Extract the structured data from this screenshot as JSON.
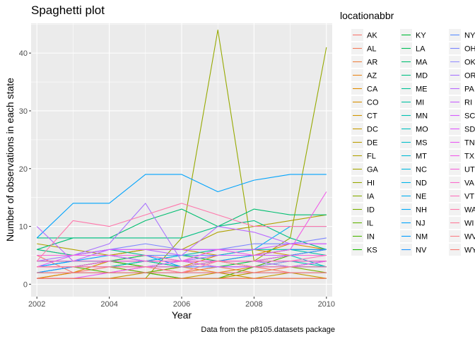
{
  "chart_data": {
    "type": "line",
    "title": "Spaghetti plot",
    "xlabel": "Year",
    "ylabel": "Number of observations in each state",
    "caption": "Data from the p8105.datasets package",
    "legend_title": "locationabbr",
    "legend_placement": "right",
    "grid": true,
    "xlim": [
      2001.84,
      2010.16
    ],
    "ylim": [
      -2.15,
      45.15
    ],
    "x_ticks": [
      2002,
      2004,
      2006,
      2008,
      2010
    ],
    "y_ticks": [
      0,
      10,
      20,
      30,
      40
    ],
    "x": [
      2002,
      2003,
      2004,
      2005,
      2006,
      2007,
      2008,
      2009,
      2010
    ],
    "series": [
      {
        "name": "AK",
        "color": "#F8766D",
        "values": [
          5,
          2,
          3,
          2,
          2,
          3,
          3,
          2,
          2
        ]
      },
      {
        "name": "AL",
        "color": "#F37B59",
        "values": [
          1,
          1,
          1,
          1,
          1,
          1,
          1,
          1,
          1
        ]
      },
      {
        "name": "AR",
        "color": "#ED8141",
        "values": [
          1,
          2,
          2,
          3,
          2,
          3,
          2,
          3,
          3
        ]
      },
      {
        "name": "AZ",
        "color": "#E7861B",
        "values": [
          2,
          2,
          2,
          2,
          3,
          2,
          3,
          3,
          3
        ]
      },
      {
        "name": "CA",
        "color": "#E08B00",
        "values": [
          1,
          2,
          4,
          3,
          3,
          5,
          5,
          7,
          6
        ]
      },
      {
        "name": "CO",
        "color": "#D89000",
        "values": [
          4,
          4,
          4,
          5,
          4,
          4,
          5,
          6,
          6
        ]
      },
      {
        "name": "CT",
        "color": "#CF9400",
        "values": [
          6,
          5,
          5,
          6,
          6,
          5,
          6,
          5,
          5
        ]
      },
      {
        "name": "DC",
        "color": "#C59900",
        "values": [
          1,
          1,
          1,
          2,
          1,
          2,
          1,
          2,
          1
        ]
      },
      {
        "name": "DE",
        "color": "#BB9D00",
        "values": [
          1,
          1,
          1,
          1,
          1,
          1,
          2,
          2,
          2
        ]
      },
      {
        "name": "FL",
        "color": "#B0A100",
        "values": [
          7,
          6,
          5,
          6,
          6,
          9,
          10,
          11,
          12
        ]
      },
      {
        "name": "GA",
        "color": "#A3A500",
        "values": [
          1,
          1,
          1,
          1,
          1,
          1,
          1,
          1,
          1
        ]
      },
      {
        "name": "HI",
        "color": "#96A900",
        "values": [
          1,
          1,
          1,
          1,
          8,
          44,
          4,
          8,
          41
        ]
      },
      {
        "name": "IA",
        "color": "#87AC00",
        "values": [
          2,
          2,
          2,
          2,
          2,
          2,
          2,
          2,
          2
        ]
      },
      {
        "name": "ID",
        "color": "#76AF00",
        "values": [
          3,
          3,
          4,
          4,
          3,
          4,
          4,
          3,
          2
        ]
      },
      {
        "name": "IL",
        "color": "#62B200",
        "values": [
          3,
          3,
          3,
          2,
          3,
          3,
          3,
          4,
          4
        ]
      },
      {
        "name": "IN",
        "color": "#49B500",
        "values": [
          3,
          3,
          2,
          2,
          1,
          1,
          3,
          5,
          6
        ]
      },
      {
        "name": "KS",
        "color": "#19B700",
        "values": [
          3,
          3,
          4,
          3,
          3,
          4,
          3,
          3,
          4
        ]
      },
      {
        "name": "KY",
        "color": "#00BA38",
        "values": [
          3,
          3,
          3,
          4,
          4,
          3,
          4,
          4,
          4
        ]
      },
      {
        "name": "LA",
        "color": "#00BC59",
        "values": [
          4,
          4,
          4,
          5,
          5,
          4,
          4,
          5,
          5
        ]
      },
      {
        "name": "MA",
        "color": "#00BE70",
        "values": [
          6,
          8,
          8,
          11,
          13,
          10,
          13,
          12,
          12
        ]
      },
      {
        "name": "MD",
        "color": "#00BF83",
        "values": [
          8,
          8,
          8,
          8,
          8,
          10,
          11,
          8,
          6
        ]
      },
      {
        "name": "ME",
        "color": "#00C094",
        "values": [
          6,
          5,
          6,
          5,
          5,
          5,
          5,
          5,
          5
        ]
      },
      {
        "name": "MI",
        "color": "#00C0A3",
        "values": [
          5,
          5,
          5,
          4,
          5,
          6,
          6,
          6,
          5
        ]
      },
      {
        "name": "MN",
        "color": "#00C0B1",
        "values": [
          3,
          3,
          3,
          4,
          3,
          4,
          4,
          4,
          3
        ]
      },
      {
        "name": "MO",
        "color": "#00BFBE",
        "values": [
          2,
          3,
          3,
          3,
          4,
          4,
          4,
          5,
          3
        ]
      },
      {
        "name": "MS",
        "color": "#00BECA",
        "values": [
          2,
          2,
          2,
          2,
          2,
          2,
          2,
          2,
          2
        ]
      },
      {
        "name": "MT",
        "color": "#00BBD5",
        "values": [
          3,
          3,
          3,
          3,
          3,
          3,
          3,
          3,
          3
        ]
      },
      {
        "name": "NC",
        "color": "#00B8DF",
        "values": [
          4,
          4,
          4,
          4,
          5,
          5,
          5,
          5,
          6
        ]
      },
      {
        "name": "ND",
        "color": "#00B4E8",
        "values": [
          3,
          3,
          3,
          3,
          3,
          3,
          3,
          3,
          3
        ]
      },
      {
        "name": "NE",
        "color": "#00AFF0",
        "values": [
          3,
          4,
          4,
          4,
          4,
          5,
          6,
          10,
          10
        ]
      },
      {
        "name": "NH",
        "color": "#00A9F7",
        "values": [
          5,
          5,
          5,
          5,
          5,
          5,
          5,
          5,
          5
        ]
      },
      {
        "name": "NJ",
        "color": "#00A3FC",
        "values": [
          8,
          14,
          14,
          19,
          19,
          16,
          18,
          19,
          19
        ]
      },
      {
        "name": "NM",
        "color": "#009BFF",
        "values": [
          3,
          4,
          5,
          5,
          3,
          4,
          5,
          6,
          6
        ]
      },
      {
        "name": "NV",
        "color": "#1993FF",
        "values": [
          2,
          3,
          3,
          3,
          3,
          3,
          3,
          3,
          3
        ]
      },
      {
        "name": "NY",
        "color": "#5A8DFF",
        "values": [
          5,
          5,
          5,
          5,
          5,
          5,
          5,
          5,
          6
        ]
      },
      {
        "name": "OH",
        "color": "#7B85FF",
        "values": [
          5,
          5,
          6,
          7,
          6,
          6,
          7,
          7,
          8
        ]
      },
      {
        "name": "OK",
        "color": "#9590FF",
        "values": [
          3,
          3,
          3,
          3,
          3,
          3,
          3,
          4,
          4
        ]
      },
      {
        "name": "OR",
        "color": "#A872FF",
        "values": [
          4,
          5,
          7,
          14,
          4,
          4,
          4,
          3,
          4
        ]
      },
      {
        "name": "PA",
        "color": "#B969FF",
        "values": [
          10,
          4,
          6,
          6,
          5,
          10,
          9,
          7,
          7
        ]
      },
      {
        "name": "RI",
        "color": "#C861FF",
        "values": [
          5,
          5,
          5,
          4,
          4,
          5,
          5,
          5,
          5
        ]
      },
      {
        "name": "SC",
        "color": "#D55BFF",
        "values": [
          3,
          5,
          6,
          6,
          6,
          6,
          6,
          7,
          7
        ]
      },
      {
        "name": "SD",
        "color": "#E058FF",
        "values": [
          2,
          2,
          2,
          2,
          2,
          2,
          2,
          2,
          2
        ]
      },
      {
        "name": "TN",
        "color": "#E958F4",
        "values": [
          1,
          1,
          2,
          3,
          4,
          3,
          3,
          3,
          4
        ]
      },
      {
        "name": "TX",
        "color": "#F05BE8",
        "values": [
          3,
          3,
          4,
          4,
          4,
          6,
          5,
          6,
          16
        ]
      },
      {
        "name": "UT",
        "color": "#F663DB",
        "values": [
          5,
          5,
          5,
          5,
          4,
          4,
          4,
          5,
          5
        ]
      },
      {
        "name": "VA",
        "color": "#FA6BCC",
        "values": [
          4,
          4,
          4,
          4,
          4,
          4,
          4,
          4,
          4
        ]
      },
      {
        "name": "VT",
        "color": "#FD72BC",
        "values": [
          3,
          3,
          3,
          3,
          3,
          4,
          4,
          4,
          5
        ]
      },
      {
        "name": "WA",
        "color": "#FF77AB",
        "values": [
          4,
          11,
          10,
          12,
          14,
          12,
          10,
          10,
          10
        ]
      },
      {
        "name": "WI",
        "color": "#FF7B99",
        "values": [
          3,
          3,
          3,
          3,
          2,
          4,
          3,
          3,
          3
        ]
      },
      {
        "name": "WV",
        "color": "#FB7F87",
        "values": [
          2,
          2,
          2,
          2,
          2,
          2,
          2,
          2,
          2
        ]
      },
      {
        "name": "WY",
        "color": "#F8766D",
        "values": [
          1,
          1,
          1,
          1,
          1,
          1,
          1,
          1,
          1
        ]
      }
    ]
  }
}
